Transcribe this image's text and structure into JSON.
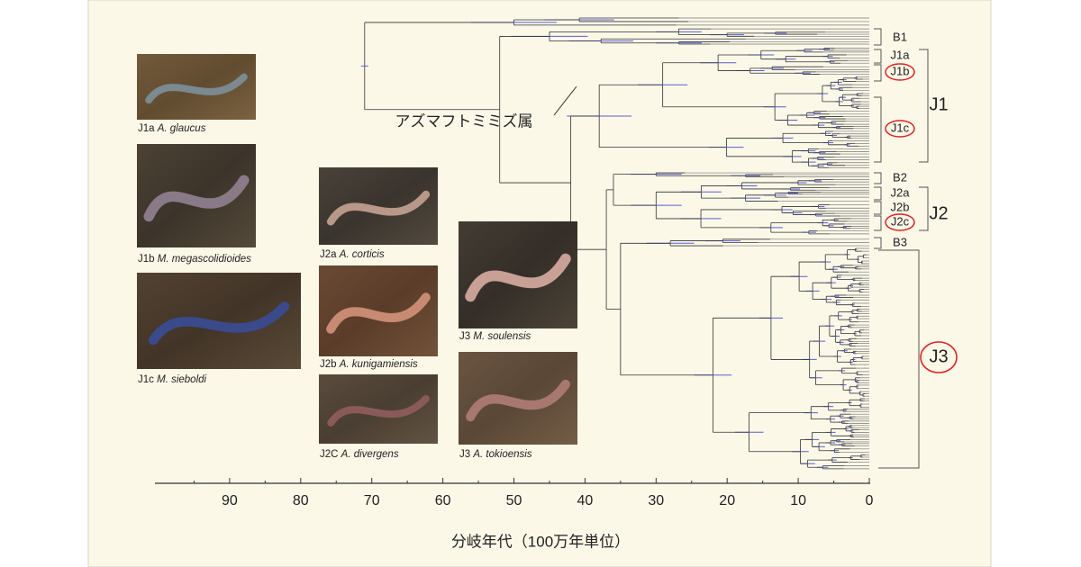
{
  "axis": {
    "ticks": [
      90,
      80,
      70,
      60,
      50,
      40,
      30,
      20,
      10,
      0
    ],
    "label": "分岐年代（100万年単位）"
  },
  "genus_label": "アズマフトミミズ属",
  "clades": {
    "minor": [
      "B1",
      "J1a",
      "J1b",
      "J1c",
      "B2",
      "J2a",
      "J2b",
      "J2c",
      "B3"
    ],
    "major": [
      "J1",
      "J2",
      "J3"
    ]
  },
  "photos": [
    {
      "clade": "J1a",
      "species": "A. glaucus"
    },
    {
      "clade": "J1b",
      "species": "M. megascolidioides"
    },
    {
      "clade": "J1c",
      "species": "M. sieboldi"
    },
    {
      "clade": "J2a",
      "species": "A. corticis"
    },
    {
      "clade": "J2b",
      "species": "A. kunigamiensis"
    },
    {
      "clade": "J2C",
      "species": "A. divergens"
    },
    {
      "clade": "J3",
      "species": "M. soulensis"
    },
    {
      "clade": "J3",
      "species": "A. tokioensis"
    }
  ]
}
